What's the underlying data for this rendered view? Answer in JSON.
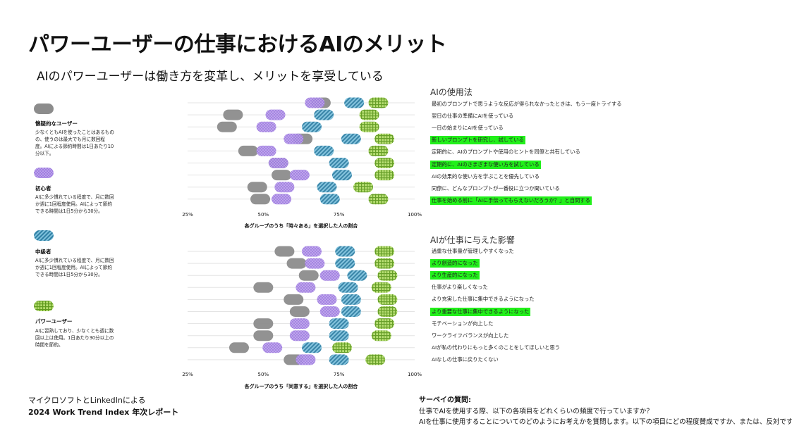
{
  "title": "パワーユーザーの仕事におけるAIのメリット",
  "subtitle": "AIのパワーユーザーは働き方を変革し、メリットを享受している",
  "legend": [
    {
      "name": "懐疑的なユーザー",
      "desc": "少なくともAIを使ったことはあるものの、使うのは最大でも月に数回程度。AIによる節約時間は1日あたり10分以下。",
      "color": "#8c8c8c",
      "pattern": "solid"
    },
    {
      "name": "初心者",
      "desc": "AIに多少慣れている程度で、月に数回か週に1回程度使用。AIによって節約できる時間は1日5分から30分。",
      "color": "#a07fe0",
      "pattern": "dots"
    },
    {
      "name": "中級者",
      "desc": "AIに多少慣れている程度で、月に数回か週に1回程度使用。AIによって節約できる時間は1日5分から30分。",
      "color": "#3f93b8",
      "pattern": "diag"
    },
    {
      "name": "パワーユーザー",
      "desc": "AIに習熟しており、少なくとも週に数回以上は使用。1日あたり30分以上の時間を節約。",
      "color": "#8dc63f",
      "pattern": "grid"
    }
  ],
  "colors": {
    "skeptic": "#8c8c8c",
    "novice": "#a07fe0",
    "explorer": "#3f93b8",
    "power": "#8dc63f",
    "highlight": "#22f01a"
  },
  "chart_data": [
    {
      "type": "scatter",
      "title": "AIの使用法",
      "xlabel": "各グループのうち「時々ある」を選択した人の割合",
      "xlim": [
        25,
        100
      ],
      "xticks": [
        "25%",
        "50%",
        "75%",
        "100%"
      ],
      "series_names": [
        "懐疑的なユーザー",
        "初心者",
        "中級者",
        "パワーユーザー"
      ],
      "rows": [
        {
          "label": "最初のプロンプトで思うような反応が得られなかったときは、もう一度トライする",
          "highlight": false,
          "values": [
            69,
            67,
            80,
            88
          ]
        },
        {
          "label": "翌日の仕事の準備にAIを使っている",
          "highlight": false,
          "values": [
            40,
            54,
            70,
            85
          ]
        },
        {
          "label": "一日の始まりにAIを使っている",
          "highlight": false,
          "values": [
            38,
            51,
            66,
            85
          ]
        },
        {
          "label": "新しいプロンプトを研究し、試している",
          "highlight": true,
          "values": [
            63,
            60,
            79,
            90
          ]
        },
        {
          "label": "定期的に、AIのプロンプトや使用のヒントを同僚と共有している",
          "highlight": false,
          "values": [
            45,
            51,
            70,
            88
          ]
        },
        {
          "label": "定期的に、AIのさまざまな使い方を試している",
          "highlight": true,
          "values": [
            55,
            55,
            75,
            90
          ]
        },
        {
          "label": "AIの効果的な使い方を学ぶことを優先している",
          "highlight": false,
          "values": [
            56,
            62,
            76,
            90
          ]
        },
        {
          "label": "同僚に、どんなプロンプトが一番役に立つか聞いている",
          "highlight": false,
          "values": [
            48,
            57,
            71,
            83
          ]
        },
        {
          "label": "仕事を始める前に「AIに手伝ってもらえないだろうか？」と自問する",
          "highlight": true,
          "values": [
            49,
            56,
            72,
            88
          ]
        }
      ]
    },
    {
      "type": "scatter",
      "title": "AIが仕事に与えた影響",
      "xlabel": "各グループのうち「同意する」を選択した人の割合",
      "xlim": [
        25,
        100
      ],
      "xticks": [
        "25%",
        "50%",
        "75%",
        "100%"
      ],
      "series_names": [
        "懐疑的なユーザー",
        "初心者",
        "中級者",
        "パワーユーザー"
      ],
      "rows": [
        {
          "label": "過重な仕事量が管理しやすくなった",
          "highlight": false,
          "values": [
            57,
            66,
            77,
            90
          ]
        },
        {
          "label": "より創造的になった",
          "highlight": true,
          "values": [
            61,
            67,
            77,
            90
          ]
        },
        {
          "label": "より生産的になった",
          "highlight": true,
          "values": [
            65,
            72,
            81,
            91
          ]
        },
        {
          "label": "仕事がより楽しくなった",
          "highlight": false,
          "values": [
            50,
            64,
            78,
            89
          ]
        },
        {
          "label": "より充実した仕事に集中できるようになった",
          "highlight": false,
          "values": [
            60,
            71,
            79,
            91
          ]
        },
        {
          "label": "より重要な仕事に集中できるようになった",
          "highlight": true,
          "values": [
            62,
            72,
            79,
            91
          ]
        },
        {
          "label": "モチベーションが向上した",
          "highlight": false,
          "values": [
            50,
            62,
            75,
            90
          ]
        },
        {
          "label": "ワークライフバランスが向上した",
          "highlight": false,
          "values": [
            50,
            62,
            75,
            89
          ]
        },
        {
          "label": "AIが私の代わりにもっと多くのことをしてほしいと思う",
          "highlight": false,
          "values": [
            42,
            53,
            66,
            76
          ]
        },
        {
          "label": "AIなしの仕事に戻りたくない",
          "highlight": false,
          "values": [
            60,
            64,
            75,
            87
          ]
        }
      ]
    }
  ],
  "source": {
    "line1": "マイクロソフトとLinkedInによる",
    "line2": "2024 Work Trend Index 年次レポート"
  },
  "survey": {
    "title": "サーベイの質問:",
    "q1": "仕事でAIを使用する際、以下の各項目をどれくらいの頻度で行っていますか？",
    "q2": "AIを仕事に使用することについてのどのようにお考えかを質問します。以下の項目にどの程度賛成ですか、または、反対ですか？"
  }
}
